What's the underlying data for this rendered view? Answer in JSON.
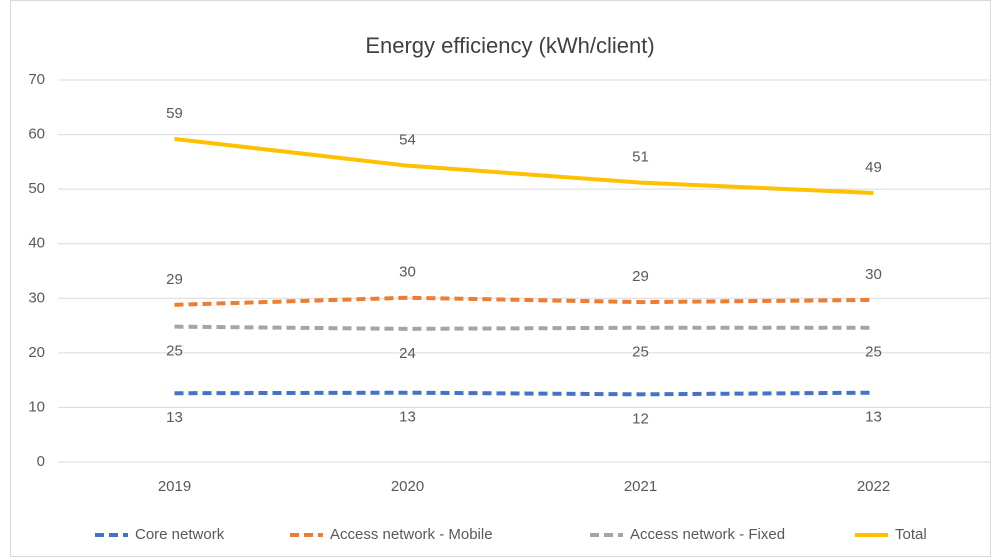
{
  "chart_data": {
    "type": "line",
    "title": "Energy efficiency (kWh/client)",
    "categories": [
      "2019",
      "2020",
      "2021",
      "2022"
    ],
    "series": [
      {
        "name": "Core network",
        "color": "#4472c4",
        "dash": true,
        "label_position": "below",
        "values": [
          12.6,
          12.7,
          12.4,
          12.7
        ],
        "value_labels": [
          "13",
          "13",
          "12",
          "13"
        ]
      },
      {
        "name": "Access network - Mobile",
        "color": "#ed7d31",
        "dash": true,
        "label_position": "above",
        "values": [
          28.8,
          30.1,
          29.3,
          29.7
        ],
        "value_labels": [
          "29",
          "30",
          "29",
          "30"
        ]
      },
      {
        "name": "Access network - Fixed",
        "color": "#a5a5a5",
        "dash": true,
        "label_position": "below",
        "values": [
          24.8,
          24.4,
          24.6,
          24.6
        ],
        "value_labels": [
          "25",
          "24",
          "25",
          "25"
        ]
      },
      {
        "name": "Total",
        "color": "#ffc000",
        "dash": false,
        "label_position": "above",
        "values": [
          59.2,
          54.3,
          51.2,
          49.3
        ],
        "value_labels": [
          "59",
          "54",
          "51",
          "49"
        ]
      }
    ],
    "ylim": [
      0,
      70
    ],
    "yticks": [
      0,
      10,
      20,
      30,
      40,
      50,
      60,
      70
    ],
    "grid": true,
    "legend": "bottom"
  }
}
